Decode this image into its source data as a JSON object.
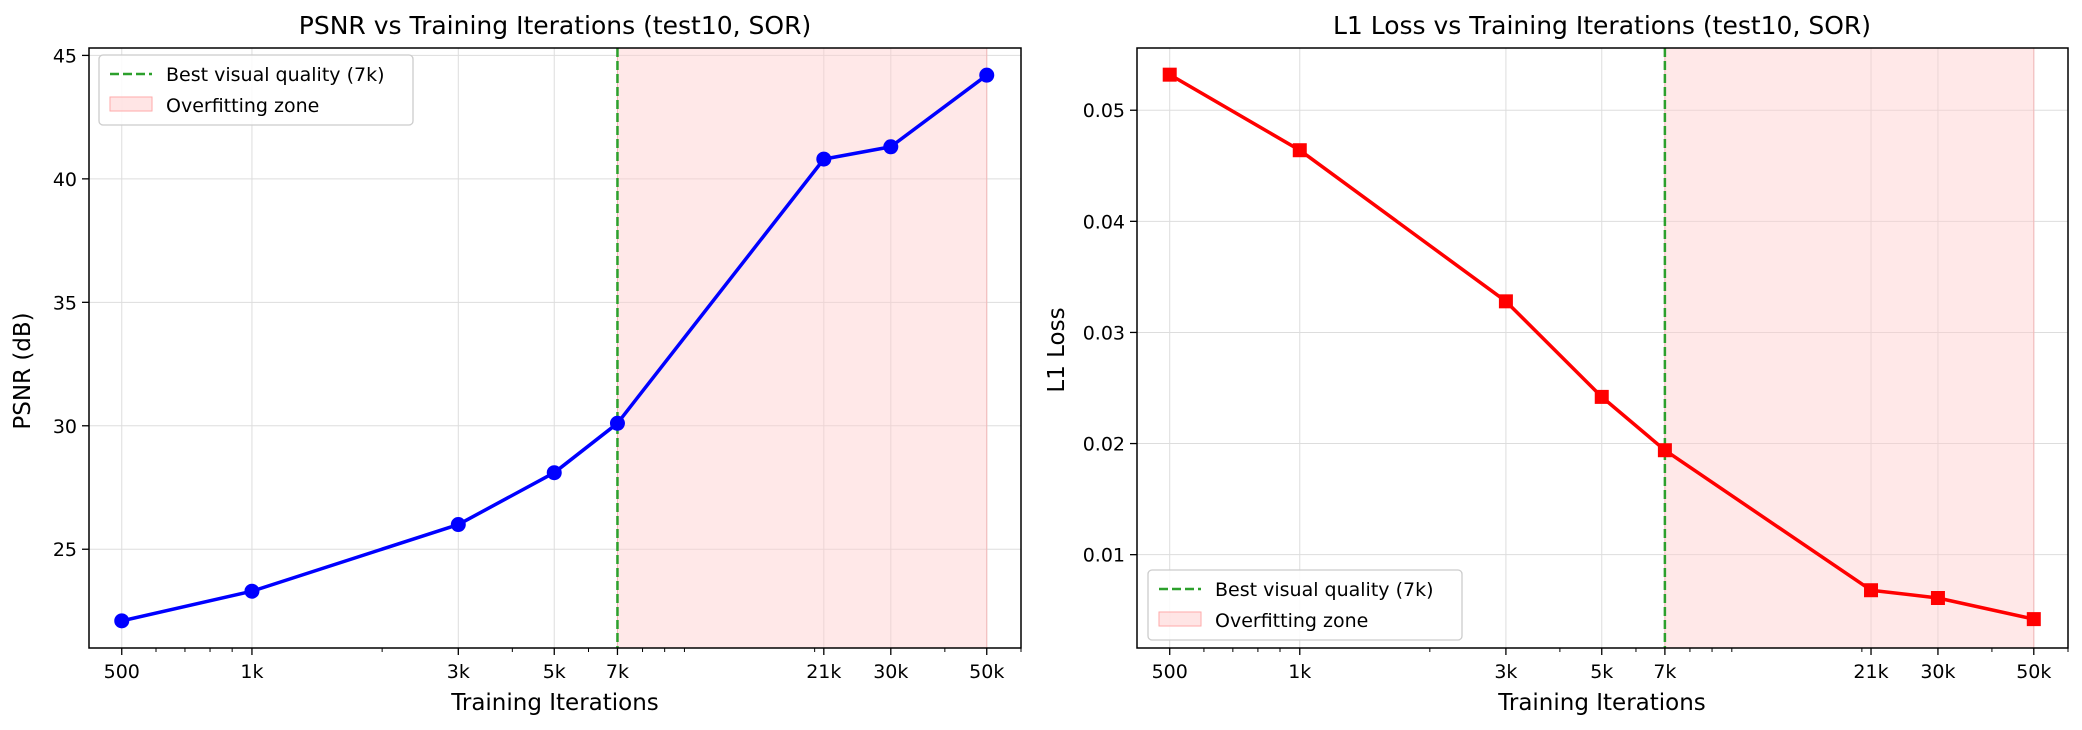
{
  "chart_data": [
    {
      "type": "line",
      "title": "PSNR vs Training Iterations (test10, SOR)",
      "xlabel": "Training Iterations",
      "ylabel": "PSNR (dB)",
      "xscale": "log",
      "xlim": [
        420,
        60000
      ],
      "ylim": [
        21.0,
        45.3
      ],
      "xticks": [
        500,
        1000,
        3000,
        5000,
        7000,
        21000,
        30000,
        50000
      ],
      "xtick_labels": [
        "500",
        "1k",
        "3k",
        "5k",
        "7k",
        "21k",
        "30k",
        "50k"
      ],
      "yticks": [
        25,
        30,
        35,
        40,
        45
      ],
      "ytick_labels": [
        "25",
        "30",
        "35",
        "40",
        "45"
      ],
      "grid": true,
      "legend_position": "top-left",
      "series": [
        {
          "x": [
            500,
            1000,
            3000,
            5000,
            7000,
            21000,
            30000,
            50000
          ],
          "y": [
            22.1,
            23.3,
            26.0,
            28.1,
            30.1,
            40.8,
            41.3,
            44.2
          ],
          "color": "#0000ff",
          "marker": "circle"
        }
      ],
      "vline": {
        "x": 7000,
        "label": "Best visual quality (7k)",
        "color": "#2ca02c"
      },
      "span": {
        "x": [
          7000,
          50000
        ],
        "label": "Overfitting zone",
        "color": "#ffcccc"
      }
    },
    {
      "type": "line",
      "title": "L1 Loss vs Training Iterations (test10, SOR)",
      "xlabel": "Training Iterations",
      "ylabel": "L1 Loss",
      "xscale": "log",
      "xlim": [
        420,
        60000
      ],
      "ylim": [
        0.0016,
        0.0556
      ],
      "xticks": [
        500,
        1000,
        3000,
        5000,
        7000,
        21000,
        30000,
        50000
      ],
      "xtick_labels": [
        "500",
        "1k",
        "3k",
        "5k",
        "7k",
        "21k",
        "30k",
        "50k"
      ],
      "yticks": [
        0.01,
        0.02,
        0.03,
        0.04,
        0.05
      ],
      "ytick_labels": [
        "0.01",
        "0.02",
        "0.03",
        "0.04",
        "0.05"
      ],
      "grid": true,
      "legend_position": "bottom-left",
      "series": [
        {
          "x": [
            500,
            1000,
            3000,
            5000,
            7000,
            21000,
            30000,
            50000
          ],
          "y": [
            0.0532,
            0.0464,
            0.0328,
            0.0242,
            0.0194,
            0.0068,
            0.0061,
            0.0042
          ],
          "color": "#ff0000",
          "marker": "square"
        }
      ],
      "vline": {
        "x": 7000,
        "label": "Best visual quality (7k)",
        "color": "#2ca02c"
      },
      "span": {
        "x": [
          7000,
          50000
        ],
        "label": "Overfitting zone",
        "color": "#ffcccc"
      }
    }
  ]
}
